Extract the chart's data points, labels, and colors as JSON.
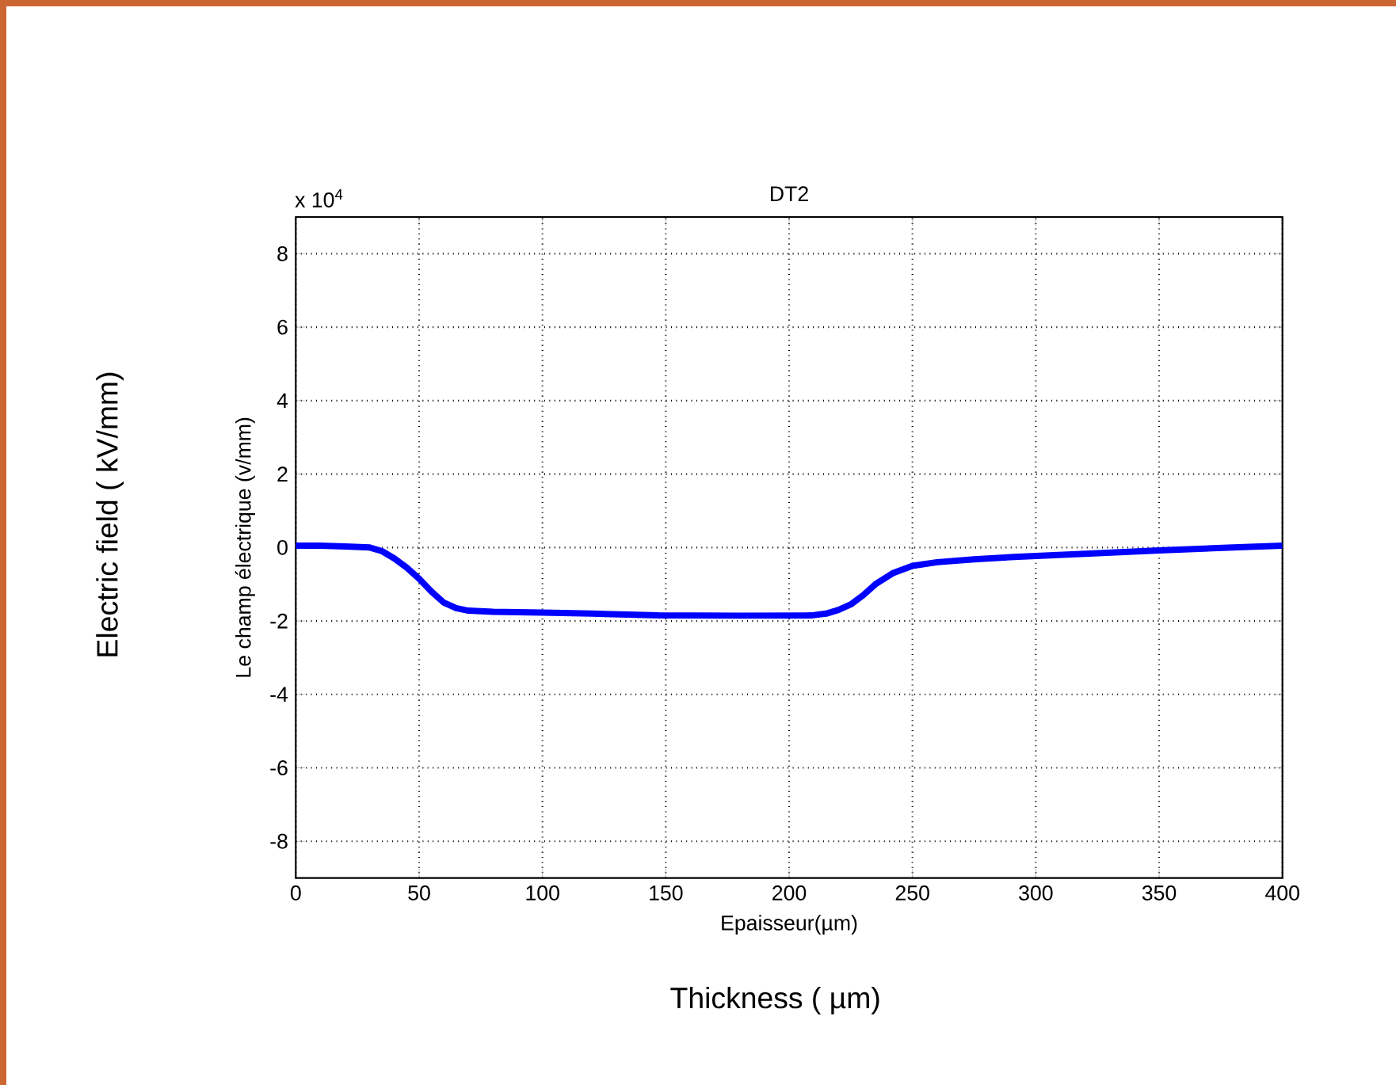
{
  "chart_data": {
    "type": "line",
    "title": "DT2",
    "xlabel": "Epaisseur(µm)",
    "ylabel": "Le champ électrique (v/mm)",
    "annotations": [
      "x 10$^{4}$",
      "Electric field ( kV/mm)",
      "Thickness ( µm)"
    ],
    "xlim": [
      0,
      400
    ],
    "ylim": [
      -9,
      9
    ],
    "xticks": [
      0,
      50,
      100,
      150,
      200,
      250,
      300,
      350,
      400
    ],
    "yticks": [
      -8,
      -6,
      -4,
      -2,
      0,
      2,
      4,
      6,
      8
    ],
    "grid": true,
    "series": [
      {
        "color": "#0000ff",
        "x": [
          0,
          10,
          20,
          30,
          35,
          40,
          45,
          50,
          55,
          60,
          65,
          70,
          80,
          100,
          120,
          147,
          180,
          209,
          215,
          220,
          225,
          230,
          235,
          242,
          250,
          260,
          275,
          293,
          320,
          350,
          380,
          400
        ],
        "values": [
          0.05,
          0.05,
          0.03,
          0,
          -0.1,
          -0.3,
          -0.55,
          -0.85,
          -1.2,
          -1.5,
          -1.65,
          -1.72,
          -1.75,
          -1.77,
          -1.8,
          -1.85,
          -1.86,
          -1.85,
          -1.8,
          -1.7,
          -1.55,
          -1.3,
          -1.0,
          -0.7,
          -0.5,
          -0.4,
          -0.32,
          -0.25,
          -0.17,
          -0.08,
          0.0,
          0.05
        ]
      }
    ]
  }
}
